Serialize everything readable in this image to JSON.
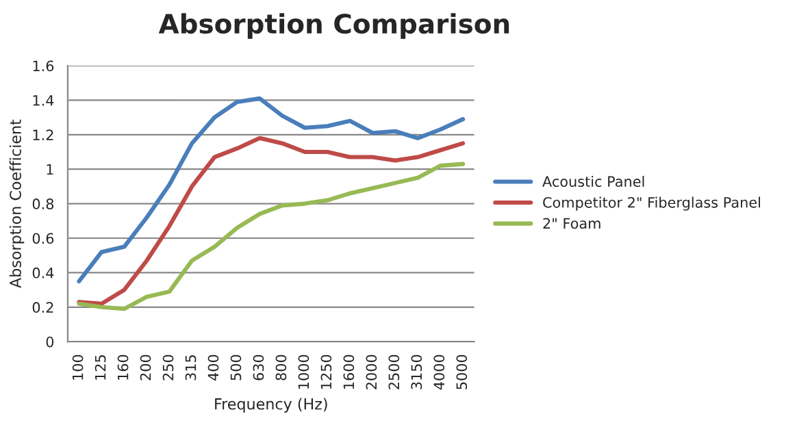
{
  "chart_data": {
    "type": "line",
    "title": "Absorption Comparison",
    "xlabel": "Frequency (Hz)",
    "ylabel": "Absorption Coefficient",
    "categories": [
      "100",
      "125",
      "160",
      "200",
      "250",
      "315",
      "400",
      "500",
      "630",
      "800",
      "1000",
      "1250",
      "1600",
      "2000",
      "2500",
      "3150",
      "4000",
      "5000"
    ],
    "series": [
      {
        "name": "Acoustic Panel",
        "color": "#4a7ebb",
        "values": [
          0.35,
          0.52,
          0.55,
          0.72,
          0.91,
          1.15,
          1.3,
          1.39,
          1.41,
          1.31,
          1.24,
          1.25,
          1.28,
          1.21,
          1.22,
          1.18,
          1.23,
          1.29
        ]
      },
      {
        "name": "Competitor 2\" Fiberglass Panel",
        "color": "#be4b48",
        "values": [
          0.23,
          0.22,
          0.3,
          0.47,
          0.67,
          0.9,
          1.07,
          1.12,
          1.18,
          1.15,
          1.1,
          1.1,
          1.07,
          1.07,
          1.05,
          1.07,
          1.11,
          1.15
        ]
      },
      {
        "name": "2\" Foam",
        "color": "#98b954",
        "values": [
          0.22,
          0.2,
          0.19,
          0.26,
          0.29,
          0.47,
          0.55,
          0.66,
          0.74,
          0.79,
          0.8,
          0.82,
          0.86,
          0.89,
          0.92,
          0.95,
          1.02,
          1.03
        ]
      }
    ],
    "ylim": [
      0,
      1.6
    ],
    "yticks": [
      0,
      {
        "value": 0.2,
        "label": "0.2"
      },
      {
        "value": 0.4,
        "label": "0.4"
      },
      {
        "value": 0.6,
        "label": "0.6"
      },
      {
        "value": 0.8,
        "label": "0.8"
      },
      1,
      {
        "value": 1.2,
        "label": "1.2"
      },
      {
        "value": 1.4,
        "label": "1.4"
      },
      {
        "value": 1.6,
        "label": "1.6"
      }
    ],
    "grid": "y",
    "legend": "right",
    "marker": "none",
    "line_style": "solid"
  }
}
